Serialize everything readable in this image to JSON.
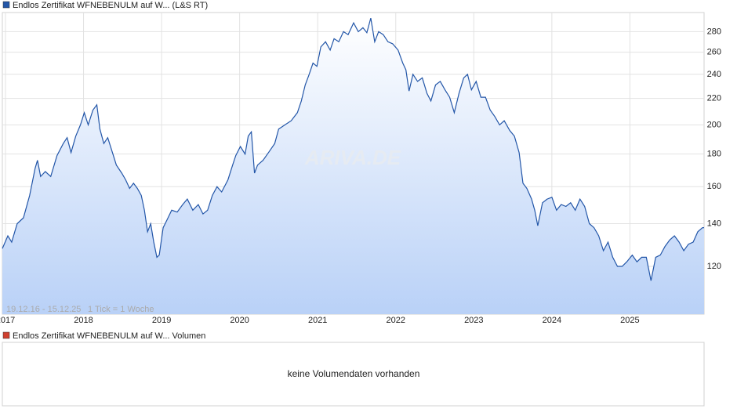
{
  "chart_data": {
    "type": "area",
    "series": [
      {
        "name": "Endlos Zertifikat WFNEBENULM auf W... (L&S RT)",
        "color": "#2356a8",
        "x": [
          2016.96,
          2017.03,
          2017.08,
          2017.15,
          2017.23,
          2017.31,
          2017.38,
          2017.41,
          2017.45,
          2017.51,
          2017.58,
          2017.66,
          2017.74,
          2017.79,
          2017.84,
          2017.9,
          2017.96,
          2018.01,
          2018.06,
          2018.12,
          2018.17,
          2018.21,
          2018.26,
          2018.31,
          2018.37,
          2018.42,
          2018.49,
          2018.54,
          2018.59,
          2018.64,
          2018.69,
          2018.74,
          2018.78,
          2018.82,
          2018.86,
          2018.9,
          2018.94,
          2018.97,
          2019.02,
          2019.07,
          2019.13,
          2019.2,
          2019.27,
          2019.33,
          2019.4,
          2019.47,
          2019.53,
          2019.59,
          2019.65,
          2019.71,
          2019.77,
          2019.85,
          2019.91,
          2019.95,
          2020.01,
          2020.07,
          2020.11,
          2020.15,
          2020.19,
          2020.23,
          2020.3,
          2020.37,
          2020.45,
          2020.5,
          2020.58,
          2020.66,
          2020.74,
          2020.79,
          2020.84,
          2020.89,
          2020.94,
          2020.99,
          2021.04,
          2021.1,
          2021.16,
          2021.21,
          2021.27,
          2021.33,
          2021.39,
          2021.46,
          2021.52,
          2021.58,
          2021.63,
          2021.68,
          2021.73,
          2021.78,
          2021.84,
          2021.9,
          2021.96,
          2022.03,
          2022.09,
          2022.13,
          2022.17,
          2022.22,
          2022.28,
          2022.34,
          2022.4,
          2022.45,
          2022.51,
          2022.57,
          2022.63,
          2022.69,
          2022.75,
          2022.81,
          2022.87,
          2022.92,
          2022.97,
          2023.03,
          2023.09,
          2023.15,
          2023.21,
          2023.27,
          2023.33,
          2023.39,
          2023.46,
          2023.52,
          2023.58,
          2023.63,
          2023.68,
          2023.74,
          2023.78,
          2023.82,
          2023.88,
          2023.94,
          2024.0,
          2024.06,
          2024.12,
          2024.18,
          2024.24,
          2024.3,
          2024.36,
          2024.42,
          2024.48,
          2024.54,
          2024.6,
          2024.66,
          2024.72,
          2024.78,
          2024.84,
          2024.9,
          2024.96,
          2025.03,
          2025.09,
          2025.15,
          2025.21,
          2025.27,
          2025.33,
          2025.39,
          2025.45,
          2025.51,
          2025.57,
          2025.63,
          2025.69,
          2025.75,
          2025.81,
          2025.87,
          2025.93,
          2025.95
        ],
        "values": [
          128,
          134,
          131,
          140,
          143,
          155,
          171,
          176,
          166,
          169,
          166,
          179,
          187,
          191,
          181,
          192,
          200,
          209,
          200,
          211,
          215,
          197,
          187,
          191,
          181,
          173,
          168,
          164,
          159,
          162,
          159,
          155,
          147,
          136,
          140,
          131,
          124,
          125,
          138,
          142,
          147,
          146,
          150,
          153,
          147,
          150,
          145,
          147,
          155,
          160,
          157,
          164,
          173,
          179,
          185,
          180,
          192,
          195,
          168,
          173,
          176,
          181,
          187,
          197,
          200,
          203,
          209,
          218,
          231,
          240,
          250,
          247,
          265,
          270,
          262,
          273,
          270,
          280,
          277,
          289,
          280,
          284,
          279,
          294,
          270,
          280,
          277,
          270,
          268,
          262,
          250,
          244,
          226,
          240,
          234,
          237,
          224,
          218,
          231,
          234,
          227,
          221,
          209,
          224,
          237,
          240,
          227,
          234,
          221,
          221,
          211,
          206,
          200,
          203,
          196,
          192,
          181,
          162,
          159,
          153,
          147,
          139,
          151,
          153,
          154,
          147,
          150,
          149,
          151,
          147,
          153,
          149,
          140,
          138,
          134,
          127,
          131,
          124,
          120,
          120,
          122,
          125,
          122,
          124,
          124,
          114,
          124,
          125,
          129,
          132,
          134,
          131,
          127,
          130,
          131,
          136,
          138,
          138
        ]
      }
    ],
    "xlim": [
      2016.96,
      2025.95
    ],
    "xticks": [
      2017,
      2018,
      2019,
      2020,
      2021,
      2022,
      2023,
      2024,
      2025
    ],
    "ylim": [
      101,
      300
    ],
    "yticks": [
      120,
      140,
      160,
      180,
      200,
      220,
      240,
      260,
      280
    ],
    "log_scale": true,
    "grid": true,
    "annotations": [
      "19.12.16 - 15.12.25",
      "1 Tick = 1 Woche"
    ],
    "watermark": "ARIVA.DE"
  },
  "volume_panel": {
    "legend": "Endlos Zertifikat WFNEBENULM auf W... Volumen",
    "color": "#d0402f",
    "message": "keine Volumendaten vorhanden"
  }
}
